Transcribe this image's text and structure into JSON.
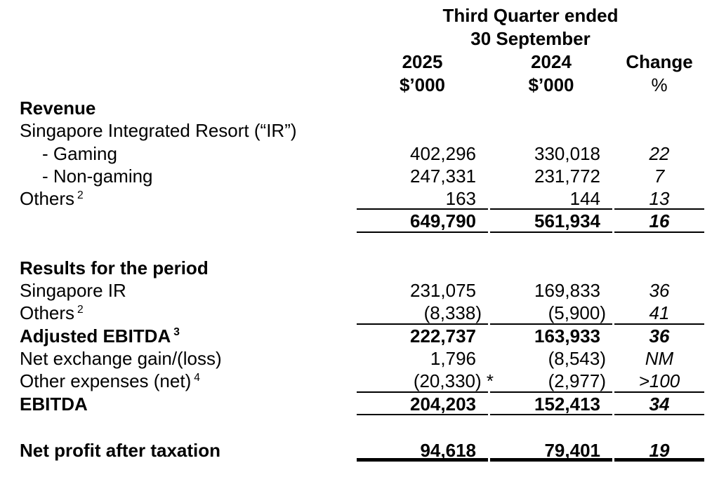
{
  "header": {
    "period_line1": "Third Quarter ended",
    "period_line2": "30 September",
    "col_2025": {
      "year": "2025",
      "unit": "$’000"
    },
    "col_2024": {
      "year": "2024",
      "unit": "$’000"
    },
    "col_change": {
      "label": "Change",
      "unit": "%"
    }
  },
  "table": {
    "rows": [
      {
        "label": "Revenue",
        "bold": true
      },
      {
        "label": "Singapore Integrated Resort (“IR”)"
      },
      {
        "label": "- Gaming",
        "indent": true,
        "v2025": "402,296",
        "v2024": "330,018",
        "change": "22"
      },
      {
        "label": "- Non-gaming",
        "indent": true,
        "v2025": "247,331",
        "v2024": "231,772",
        "change": "7"
      },
      {
        "label": "Others",
        "sup": "2",
        "v2025": "163",
        "v2024": "144",
        "change": "13",
        "underline": true
      },
      {
        "label": "",
        "v2025": "649,790",
        "v2024": "561,934",
        "change": "16",
        "bold_values": true,
        "underline": true
      },
      {
        "spacer": true
      },
      {
        "label": "Results for the period",
        "bold": true
      },
      {
        "label": "Singapore IR",
        "v2025": "231,075",
        "v2024": "169,833",
        "change": "36"
      },
      {
        "label": "Others",
        "sup": "2",
        "v2025": "(8,338)",
        "v2024": "(5,900)",
        "change": "41",
        "underline": true
      },
      {
        "label": "Adjusted EBITDA",
        "sup": "3",
        "bold": true,
        "v2025": "222,737",
        "v2024": "163,933",
        "change": "36",
        "bold_values": true
      },
      {
        "label": "Net exchange gain/(loss)",
        "v2025": "1,796",
        "v2024": "(8,543)",
        "change": "NM"
      },
      {
        "label": "Other expenses (net)",
        "sup": "4",
        "v2025": "(20,330) *",
        "v2024": "(2,977)",
        "change": ">100",
        "underline": true
      },
      {
        "label": "EBITDA",
        "bold": true,
        "v2025": "204,203",
        "v2024": "152,413",
        "change": "34",
        "bold_values": true,
        "underline": true
      },
      {
        "spacer": true
      },
      {
        "label": "Net profit after taxation",
        "bold": true,
        "v2025": "94,618",
        "v2024": "79,401",
        "change": "19",
        "bold_values": true,
        "thick": true
      }
    ]
  },
  "colors": {
    "text": "#000000",
    "background": "#ffffff",
    "rule": "#000000"
  }
}
